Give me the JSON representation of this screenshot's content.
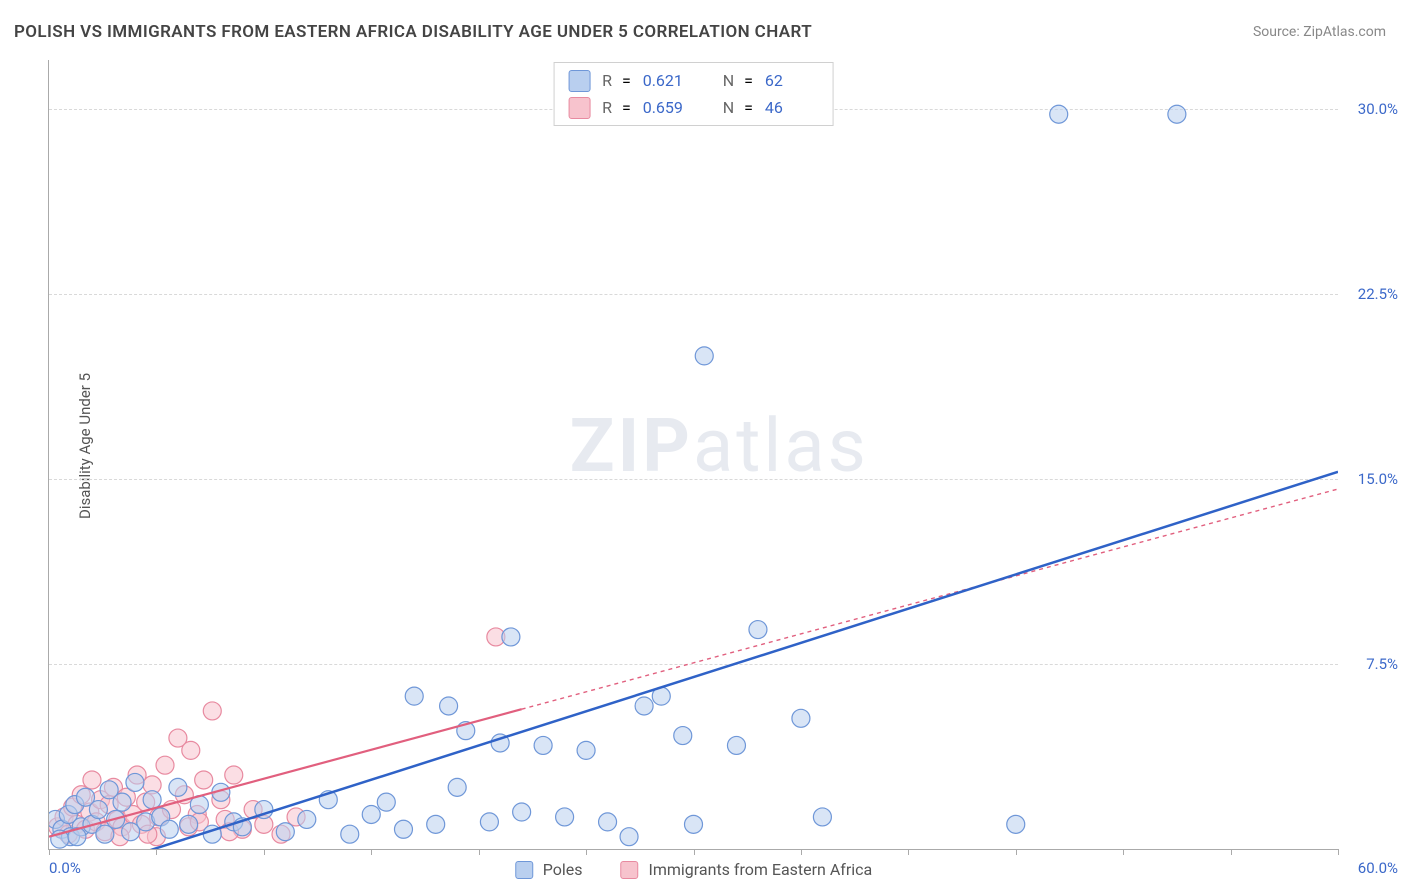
{
  "title": "POLISH VS IMMIGRANTS FROM EASTERN AFRICA DISABILITY AGE UNDER 5 CORRELATION CHART",
  "source_prefix": "Source: ",
  "source_name": "ZipAtlas.com",
  "ylabel": "Disability Age Under 5",
  "watermark_bold": "ZIP",
  "watermark_rest": "atlas",
  "chart": {
    "type": "scatter-with-regression",
    "xlim": [
      0,
      60
    ],
    "ylim": [
      0,
      32
    ],
    "x_tick_positions": [
      0,
      5,
      10,
      15,
      20,
      25,
      30,
      35,
      40,
      45,
      50,
      55,
      60
    ],
    "x_min_label": "0.0%",
    "x_max_label": "60.0%",
    "y_ticks": [
      {
        "v": 7.5,
        "label": "7.5%"
      },
      {
        "v": 15.0,
        "label": "15.0%"
      },
      {
        "v": 22.5,
        "label": "22.5%"
      },
      {
        "v": 30.0,
        "label": "30.0%"
      }
    ],
    "marker_radius": 9,
    "marker_stroke_width": 1.2,
    "background_color": "#ffffff",
    "grid_color": "#d9d9d9",
    "axis_color": "#aaaaaa",
    "tick_label_color": "#3b68c9",
    "series": [
      {
        "id": "poles",
        "label": "Poles",
        "fill": "#b9cfef",
        "fill_opacity": 0.55,
        "stroke": "#6f97d8",
        "line_color": "#2f62c7",
        "line_width": 2.5,
        "line_dash": "none",
        "r_value": "0.621",
        "n_value": "62",
        "regression": {
          "x1": 2,
          "y1": -0.8,
          "x2": 60,
          "y2": 15.3
        },
        "points": [
          [
            0.3,
            1.2
          ],
          [
            0.6,
            0.8
          ],
          [
            0.9,
            1.4
          ],
          [
            1.0,
            0.5
          ],
          [
            1.2,
            1.8
          ],
          [
            1.5,
            0.9
          ],
          [
            1.7,
            2.1
          ],
          [
            2.0,
            1.0
          ],
          [
            2.3,
            1.6
          ],
          [
            2.6,
            0.6
          ],
          [
            2.8,
            2.4
          ],
          [
            3.1,
            1.2
          ],
          [
            3.4,
            1.9
          ],
          [
            3.8,
            0.7
          ],
          [
            4.0,
            2.7
          ],
          [
            4.5,
            1.1
          ],
          [
            4.8,
            2.0
          ],
          [
            5.2,
            1.3
          ],
          [
            5.6,
            0.8
          ],
          [
            6.0,
            2.5
          ],
          [
            6.5,
            1.0
          ],
          [
            7.0,
            1.8
          ],
          [
            7.6,
            0.6
          ],
          [
            8.0,
            2.3
          ],
          [
            8.6,
            1.1
          ],
          [
            9.0,
            0.9
          ],
          [
            10.0,
            1.6
          ],
          [
            11.0,
            0.7
          ],
          [
            12.0,
            1.2
          ],
          [
            13.0,
            2.0
          ],
          [
            14.0,
            0.6
          ],
          [
            15.0,
            1.4
          ],
          [
            15.7,
            1.9
          ],
          [
            16.5,
            0.8
          ],
          [
            17.0,
            6.2
          ],
          [
            18.0,
            1.0
          ],
          [
            18.6,
            5.8
          ],
          [
            19.0,
            2.5
          ],
          [
            19.4,
            4.8
          ],
          [
            20.5,
            1.1
          ],
          [
            21.0,
            4.3
          ],
          [
            21.5,
            8.6
          ],
          [
            22.0,
            1.5
          ],
          [
            23.0,
            4.2
          ],
          [
            24.0,
            1.3
          ],
          [
            25.0,
            4.0
          ],
          [
            26.0,
            1.1
          ],
          [
            27.0,
            0.5
          ],
          [
            27.7,
            5.8
          ],
          [
            28.5,
            6.2
          ],
          [
            29.5,
            4.6
          ],
          [
            30.0,
            1.0
          ],
          [
            30.5,
            20.0
          ],
          [
            32.0,
            4.2
          ],
          [
            33.0,
            8.9
          ],
          [
            35.0,
            5.3
          ],
          [
            36.0,
            1.3
          ],
          [
            45.0,
            1.0
          ],
          [
            47.0,
            29.8
          ],
          [
            52.5,
            29.8
          ],
          [
            0.5,
            0.4
          ],
          [
            1.3,
            0.5
          ]
        ]
      },
      {
        "id": "eastafrica",
        "label": "Immigrants from Eastern Africa",
        "fill": "#f7c3cd",
        "fill_opacity": 0.55,
        "stroke": "#e88aa0",
        "line_color": "#e15f7e",
        "line_width": 2.2,
        "line_dash": "4 4",
        "line_solid_until_x": 22,
        "r_value": "0.659",
        "n_value": "46",
        "regression": {
          "x1": 0,
          "y1": 0.5,
          "x2": 60,
          "y2": 14.6
        },
        "points": [
          [
            0.4,
            0.9
          ],
          [
            0.7,
            1.3
          ],
          [
            0.9,
            0.6
          ],
          [
            1.1,
            1.7
          ],
          [
            1.3,
            1.0
          ],
          [
            1.5,
            2.2
          ],
          [
            1.7,
            0.8
          ],
          [
            1.9,
            1.5
          ],
          [
            2.0,
            2.8
          ],
          [
            2.2,
            1.1
          ],
          [
            2.4,
            2.0
          ],
          [
            2.6,
            0.7
          ],
          [
            2.8,
            1.8
          ],
          [
            3.0,
            2.5
          ],
          [
            3.2,
            1.2
          ],
          [
            3.4,
            0.9
          ],
          [
            3.6,
            2.1
          ],
          [
            3.9,
            1.4
          ],
          [
            4.1,
            3.0
          ],
          [
            4.3,
            1.0
          ],
          [
            4.5,
            1.9
          ],
          [
            4.8,
            2.6
          ],
          [
            5.1,
            1.3
          ],
          [
            5.4,
            3.4
          ],
          [
            5.7,
            1.6
          ],
          [
            6.0,
            4.5
          ],
          [
            6.3,
            2.2
          ],
          [
            6.6,
            4.0
          ],
          [
            6.9,
            1.4
          ],
          [
            7.2,
            2.8
          ],
          [
            7.6,
            5.6
          ],
          [
            8.0,
            2.0
          ],
          [
            8.2,
            1.2
          ],
          [
            8.6,
            3.0
          ],
          [
            9.0,
            0.8
          ],
          [
            9.5,
            1.6
          ],
          [
            10.0,
            1.0
          ],
          [
            10.8,
            0.6
          ],
          [
            11.5,
            1.3
          ],
          [
            5.0,
            0.5
          ],
          [
            6.5,
            0.9
          ],
          [
            7.0,
            1.1
          ],
          [
            8.4,
            0.7
          ],
          [
            4.6,
            0.6
          ],
          [
            3.3,
            0.5
          ],
          [
            20.8,
            8.6
          ]
        ]
      }
    ]
  },
  "legend_top_label_r": "R",
  "legend_top_label_eq": "=",
  "legend_top_label_n": "N",
  "legend_bottom_label1": "Poles",
  "legend_bottom_label2": "Immigrants from Eastern Africa"
}
